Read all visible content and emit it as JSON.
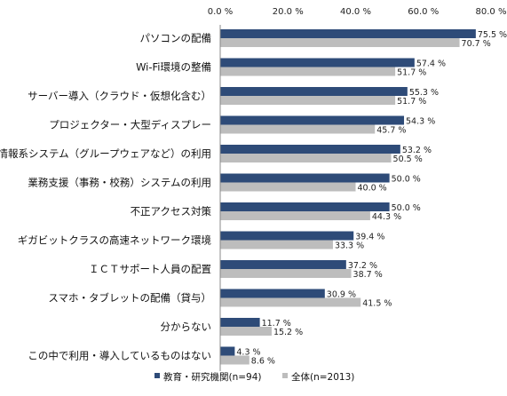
{
  "chart_data": {
    "type": "bar",
    "orientation": "horizontal",
    "categories": [
      "パソコンの配備",
      "Wi-Fi環境の整備",
      "サーバー導入（クラウド・仮想化含む）",
      "プロジェクター・大型ディスプレー",
      "情報系システム（グループウェアなど）の利用",
      "業務支援（事務・校務）システムの利用",
      "不正アクセス対策",
      "ギガビットクラスの高速ネットワーク環境",
      "ＩＣＴサポート人員の配置",
      "スマホ・タブレットの配備（貸与）",
      "分からない",
      "この中で利用・導入しているものはない"
    ],
    "series": [
      {
        "name": "教育・研究機関(n=94)",
        "color": "#2e4b78",
        "values": [
          75.5,
          57.4,
          55.3,
          54.3,
          53.2,
          50.0,
          50.0,
          39.4,
          37.2,
          30.9,
          11.7,
          4.3
        ],
        "labels": [
          "75.5 %",
          "57.4 %",
          "55.3 %",
          "54.3 %",
          "53.2 %",
          "50.0 %",
          "50.0 %",
          "39.4 %",
          "37.2 %",
          "30.9 %",
          "11.7 %",
          "4.3 %"
        ]
      },
      {
        "name": "全体(n=2013)",
        "color": "#bdbdbd",
        "values": [
          70.7,
          51.7,
          51.7,
          45.7,
          50.5,
          40.0,
          44.3,
          33.3,
          38.7,
          41.5,
          15.2,
          8.6
        ],
        "labels": [
          "70.7 %",
          "51.7 %",
          "51.7 %",
          "45.7 %",
          "50.5 %",
          "40.0 %",
          "44.3 %",
          "33.3 %",
          "38.7 %",
          "41.5 %",
          "15.2 %",
          "8.6 %"
        ]
      }
    ],
    "xlim": [
      0,
      80
    ],
    "xticks": [
      "0.0 %",
      "20.0 %",
      "40.0 %",
      "60.0 %",
      "80.0 %"
    ],
    "xtick_values": [
      0,
      20,
      40,
      60,
      80
    ],
    "grid": false,
    "legend_position": "bottom"
  }
}
